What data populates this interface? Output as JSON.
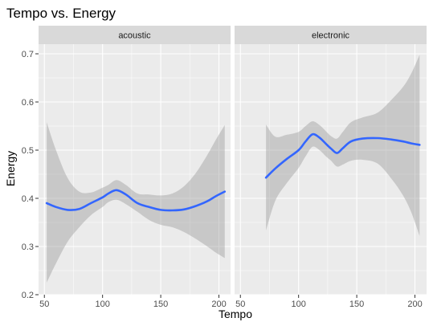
{
  "chart_data": {
    "type": "line",
    "title": "Tempo vs. Energy",
    "xlabel": "Tempo",
    "ylabel": "Energy",
    "xlim": [
      45,
      210
    ],
    "ylim": [
      0.2,
      0.72
    ],
    "x_ticks": [
      50,
      100,
      150,
      200
    ],
    "x_tick_labels": [
      "50",
      "100",
      "150",
      "200"
    ],
    "y_ticks": [
      0.2,
      0.3,
      0.4,
      0.5,
      0.6,
      0.7
    ],
    "y_tick_labels": [
      "0.2",
      "0.3",
      "0.4",
      "0.5",
      "0.6",
      "0.7"
    ],
    "grid": true,
    "colors": {
      "panel_bg": "#ebebeb",
      "strip_bg": "#d9d9d9",
      "grid": "#ffffff",
      "line": "#3366ff",
      "ribbon": "#999999"
    },
    "panels": [
      {
        "label": "acoustic",
        "points": [
          {
            "x": 52,
            "y": 0.39,
            "lo": 0.225,
            "hi": 0.558
          },
          {
            "x": 60,
            "y": 0.382,
            "lo": 0.265,
            "hi": 0.5
          },
          {
            "x": 70,
            "y": 0.376,
            "lo": 0.31,
            "hi": 0.442
          },
          {
            "x": 80,
            "y": 0.378,
            "lo": 0.34,
            "hi": 0.414
          },
          {
            "x": 90,
            "y": 0.39,
            "lo": 0.365,
            "hi": 0.412
          },
          {
            "x": 100,
            "y": 0.402,
            "lo": 0.382,
            "hi": 0.422
          },
          {
            "x": 105,
            "y": 0.41,
            "lo": 0.392,
            "hi": 0.428
          },
          {
            "x": 112,
            "y": 0.417,
            "lo": 0.397,
            "hi": 0.438
          },
          {
            "x": 120,
            "y": 0.408,
            "lo": 0.388,
            "hi": 0.428
          },
          {
            "x": 130,
            "y": 0.39,
            "lo": 0.372,
            "hi": 0.41
          },
          {
            "x": 140,
            "y": 0.382,
            "lo": 0.355,
            "hi": 0.408
          },
          {
            "x": 150,
            "y": 0.376,
            "lo": 0.345,
            "hi": 0.406
          },
          {
            "x": 160,
            "y": 0.375,
            "lo": 0.34,
            "hi": 0.41
          },
          {
            "x": 170,
            "y": 0.377,
            "lo": 0.33,
            "hi": 0.425
          },
          {
            "x": 180,
            "y": 0.384,
            "lo": 0.316,
            "hi": 0.452
          },
          {
            "x": 190,
            "y": 0.394,
            "lo": 0.3,
            "hi": 0.49
          },
          {
            "x": 197,
            "y": 0.404,
            "lo": 0.288,
            "hi": 0.52
          },
          {
            "x": 205,
            "y": 0.414,
            "lo": 0.276,
            "hi": 0.552
          }
        ]
      },
      {
        "label": "electronic",
        "points": [
          {
            "x": 72,
            "y": 0.443,
            "lo": 0.333,
            "hi": 0.553
          },
          {
            "x": 80,
            "y": 0.462,
            "lo": 0.395,
            "hi": 0.528
          },
          {
            "x": 90,
            "y": 0.482,
            "lo": 0.432,
            "hi": 0.532
          },
          {
            "x": 100,
            "y": 0.5,
            "lo": 0.463,
            "hi": 0.538
          },
          {
            "x": 106,
            "y": 0.518,
            "lo": 0.487,
            "hi": 0.55
          },
          {
            "x": 112,
            "y": 0.533,
            "lo": 0.507,
            "hi": 0.56
          },
          {
            "x": 118,
            "y": 0.526,
            "lo": 0.5,
            "hi": 0.552
          },
          {
            "x": 124,
            "y": 0.512,
            "lo": 0.486,
            "hi": 0.538
          },
          {
            "x": 128,
            "y": 0.503,
            "lo": 0.478,
            "hi": 0.529
          },
          {
            "x": 133,
            "y": 0.494,
            "lo": 0.466,
            "hi": 0.524
          },
          {
            "x": 138,
            "y": 0.504,
            "lo": 0.47,
            "hi": 0.538
          },
          {
            "x": 145,
            "y": 0.518,
            "lo": 0.478,
            "hi": 0.558
          },
          {
            "x": 155,
            "y": 0.524,
            "lo": 0.48,
            "hi": 0.568
          },
          {
            "x": 168,
            "y": 0.525,
            "lo": 0.472,
            "hi": 0.578
          },
          {
            "x": 180,
            "y": 0.522,
            "lo": 0.44,
            "hi": 0.605
          },
          {
            "x": 190,
            "y": 0.518,
            "lo": 0.405,
            "hi": 0.632
          },
          {
            "x": 197,
            "y": 0.514,
            "lo": 0.37,
            "hi": 0.66
          },
          {
            "x": 204,
            "y": 0.511,
            "lo": 0.322,
            "hi": 0.698
          }
        ]
      }
    ]
  }
}
